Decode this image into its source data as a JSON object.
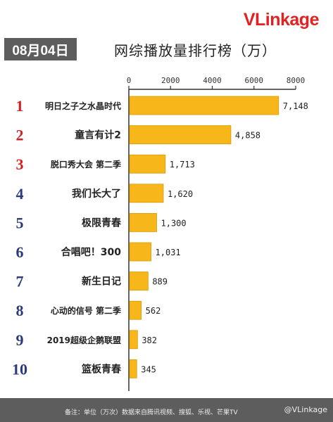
{
  "brand": {
    "logo_v": "V",
    "logo_rest": "Link",
    "logo_suffix": "age"
  },
  "header": {
    "date": "08月04日",
    "title": "网综播放量排行榜（万）"
  },
  "footer": {
    "note": "备注：单位（万次）数据来自腾讯视频、搜狐、乐视、芒果TV",
    "handle": "@VLinkage"
  },
  "chart_data": {
    "type": "bar",
    "orientation": "horizontal",
    "xlim": [
      0,
      8000
    ],
    "ticks": [
      0,
      2000,
      4000,
      6000,
      8000
    ],
    "rows": [
      {
        "rank": "1",
        "name": "明日之子之水晶时代",
        "value": 7148,
        "label": "7,148"
      },
      {
        "rank": "2",
        "name": "童言有计2",
        "value": 4858,
        "label": "4,858"
      },
      {
        "rank": "3",
        "name": "脱口秀大会 第二季",
        "value": 1713,
        "label": "1,713"
      },
      {
        "rank": "4",
        "name": "我们长大了",
        "value": 1620,
        "label": "1,620"
      },
      {
        "rank": "5",
        "name": "极限青春",
        "value": 1300,
        "label": "1,300"
      },
      {
        "rank": "6",
        "name": "合唱吧！300",
        "value": 1031,
        "label": "1,031"
      },
      {
        "rank": "7",
        "name": "新生日记",
        "value": 889,
        "label": "889"
      },
      {
        "rank": "8",
        "name": "心动的信号 第二季",
        "value": 562,
        "label": "562"
      },
      {
        "rank": "9",
        "name": "2019超级企鹅联盟",
        "value": 382,
        "label": "382"
      },
      {
        "rank": "10",
        "name": "篮板青春",
        "value": 345,
        "label": "345"
      }
    ],
    "colors": {
      "bar": "#f7b71a",
      "bar_edge": "#d99a05",
      "top_ranks": "#d62020",
      "other_ranks": "#2b3a7a",
      "axis": "#333333"
    }
  }
}
